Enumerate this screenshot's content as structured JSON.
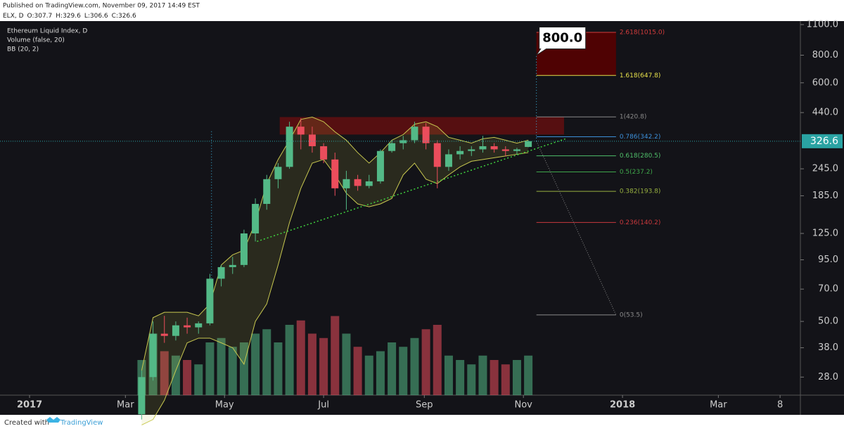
{
  "header": {
    "published": "Published on TradingView.com, November 09, 2017 14:49 EST",
    "symbol": "ELX, D",
    "ohlc_labels": [
      "O:",
      "H:",
      "L:",
      "C:"
    ]
  },
  "chart_data": {
    "type": "candlestick",
    "title": "Ethereum Liquid Index, D",
    "indicators": [
      "Volume (false, 20)",
      "BB (20, 2)"
    ],
    "x": [
      69,
      76,
      83,
      90,
      97,
      104,
      111,
      118,
      125,
      132,
      139,
      146,
      153,
      160,
      167,
      174,
      181,
      188,
      195,
      202,
      209,
      216,
      223,
      230,
      237,
      244,
      251,
      258,
      265,
      272,
      279,
      286,
      293,
      300,
      307
    ],
    "open": [
      19,
      28,
      44,
      43,
      48,
      47,
      49,
      78,
      88,
      90,
      125,
      170,
      220,
      250,
      380,
      350,
      310,
      270,
      200,
      220,
      205,
      215,
      295,
      320,
      330,
      380,
      320,
      250,
      285,
      295,
      300,
      310,
      300,
      295,
      307.7
    ],
    "high": [
      30,
      50,
      53,
      50,
      52,
      50,
      82,
      90,
      98,
      130,
      180,
      230,
      260,
      400,
      415,
      380,
      320,
      290,
      240,
      230,
      230,
      300,
      330,
      345,
      400,
      395,
      330,
      300,
      310,
      310,
      345,
      320,
      310,
      305,
      329.6
    ],
    "low": [
      18,
      27,
      40,
      41,
      44,
      44,
      48,
      72,
      82,
      88,
      115,
      160,
      200,
      245,
      300,
      290,
      260,
      185,
      160,
      195,
      200,
      210,
      290,
      300,
      320,
      300,
      200,
      240,
      270,
      280,
      290,
      290,
      280,
      285,
      306.6
    ],
    "close": [
      28,
      44,
      43,
      48,
      47,
      49,
      78,
      88,
      90,
      125,
      170,
      220,
      250,
      380,
      350,
      310,
      270,
      200,
      220,
      205,
      215,
      295,
      320,
      330,
      380,
      320,
      250,
      285,
      295,
      300,
      310,
      300,
      295,
      300,
      326.6
    ],
    "volume": [
      40,
      70,
      50,
      45,
      40,
      35,
      60,
      65,
      55,
      60,
      70,
      75,
      60,
      80,
      85,
      70,
      65,
      90,
      70,
      55,
      45,
      50,
      60,
      55,
      65,
      75,
      80,
      45,
      40,
      35,
      45,
      40,
      35,
      40,
      45
    ],
    "bb_upper": [
      30,
      52,
      55,
      55,
      55,
      53,
      60,
      90,
      100,
      105,
      140,
      210,
      270,
      330,
      410,
      420,
      400,
      360,
      330,
      290,
      260,
      290,
      330,
      350,
      390,
      400,
      380,
      340,
      330,
      320,
      335,
      340,
      330,
      320,
      330
    ],
    "bb_lower": [
      17,
      18,
      22,
      30,
      40,
      42,
      42,
      40,
      38,
      32,
      50,
      60,
      90,
      140,
      200,
      260,
      270,
      230,
      190,
      170,
      165,
      170,
      180,
      230,
      260,
      220,
      210,
      230,
      250,
      265,
      270,
      275,
      280,
      285,
      290
    ],
    "xlim": [
      -18.2,
      474.5
    ],
    "xticks": [
      {
        "value": 0,
        "label": "2017"
      },
      {
        "value": 59,
        "label": "Mar"
      },
      {
        "value": 120,
        "label": "May"
      },
      {
        "value": 181,
        "label": "Jul"
      },
      {
        "value": 243,
        "label": "Sep"
      },
      {
        "value": 304,
        "label": "Nov"
      },
      {
        "value": 365,
        "label": "2018"
      },
      {
        "value": 424,
        "label": "Mar"
      },
      {
        "value": 462,
        "label": "8"
      }
    ],
    "ylim": [
      23.2,
      1141
    ],
    "log_y": true,
    "yticks": [
      {
        "value": 1100,
        "label": "1100.0"
      },
      {
        "value": 800,
        "label": "800.0"
      },
      {
        "value": 600,
        "label": "600.0"
      },
      {
        "value": 440,
        "label": "440.0"
      },
      {
        "value": 245,
        "label": "245.0"
      },
      {
        "value": 185,
        "label": "185.0"
      },
      {
        "value": 125,
        "label": "125.0"
      },
      {
        "value": 95,
        "label": "95.0"
      },
      {
        "value": 70,
        "label": "70.0"
      },
      {
        "value": 50,
        "label": "50.0"
      },
      {
        "value": 38,
        "label": "38.0"
      },
      {
        "value": 28,
        "label": "28.0"
      }
    ],
    "volume_lim": [
      0,
      100
    ],
    "colors": {
      "up": "#53b987",
      "down": "#eb4d5c",
      "bb": "#c8c850",
      "price": "#2aa3a3",
      "vline": "#3db6e0"
    },
    "fib": [
      {
        "label": "2.618(1015.0)",
        "value": 1015.0,
        "color": "#d33c3c"
      },
      {
        "label": "1.618(647.8)",
        "value": 647.8,
        "color": "#e6e04a"
      },
      {
        "label": "1(420.8)",
        "value": 420.8,
        "color": "#8a8a8a"
      },
      {
        "label": "0.786(342.2)",
        "value": 342.2,
        "color": "#3c8fd9"
      },
      {
        "label": "0.618(280.5)",
        "value": 280.5,
        "color": "#4fbf6a"
      },
      {
        "label": "0.5(237.2)",
        "value": 237.2,
        "color": "#3fa64a"
      },
      {
        "label": "0.382(193.8)",
        "value": 193.8,
        "color": "#98b040"
      },
      {
        "label": "0.236(140.2)",
        "value": 140.2,
        "color": "#c8383c"
      },
      {
        "label": "0(53.5)",
        "value": 53.5,
        "color": "#8a8a8a"
      }
    ],
    "fib_x": [
      312,
      361
    ],
    "zones": [
      {
        "x": [
          154,
          329
        ],
        "y": [
          350,
          420
        ],
        "color": "#6e0f0f"
      }
    ],
    "trendline": {
      "x": [
        140,
        330
      ],
      "y": [
        115,
        335
      ],
      "color": "#3fd43f"
    },
    "vline": {
      "x": 112,
      "y": [
        52,
        370
      ]
    },
    "annotation": {
      "value": 800,
      "label": "800.0",
      "x": 312
    }
  },
  "footer": {
    "created": "Created with",
    "brand": "TradingView"
  }
}
